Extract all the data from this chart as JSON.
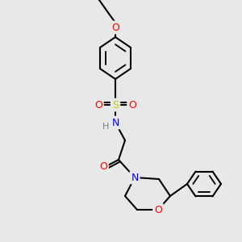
{
  "bg_color": "#e8e8e8",
  "bond_color": "#000000",
  "bond_lw": 1.5,
  "atom_colors": {
    "N": "#0000ff",
    "O": "#ff0000",
    "S": "#cccc00",
    "H": "#708090",
    "C": "#000000"
  },
  "font_size": 9,
  "font_size_small": 8
}
